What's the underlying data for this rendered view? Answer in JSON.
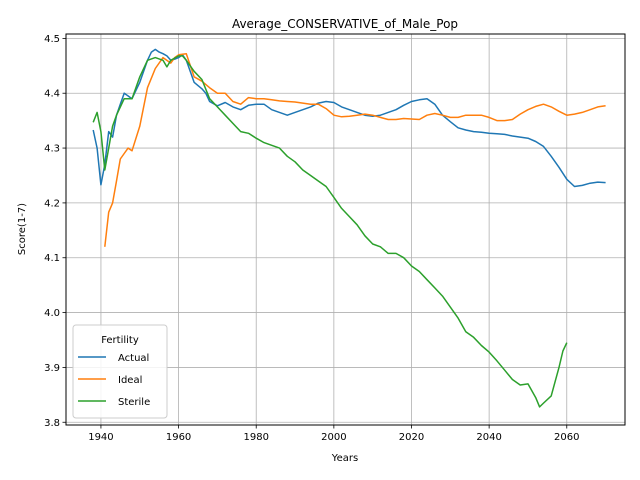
{
  "chart_data": {
    "type": "line",
    "title": "Average_CONSERVATIVE_of_Male_Pop",
    "xlabel": "Years",
    "ylabel": "Score(1-7)",
    "xlim": [
      1931,
      2075
    ],
    "ylim": [
      3.795,
      4.508
    ],
    "xticks": [
      1940,
      1960,
      1980,
      2000,
      2020,
      2040,
      2060
    ],
    "yticks": [
      3.8,
      3.9,
      4.0,
      4.1,
      4.2,
      4.3,
      4.4,
      4.5
    ],
    "grid": true,
    "legend": {
      "title": "Fertility",
      "placement": "lower-left"
    },
    "series": [
      {
        "name": "Actual",
        "color": "#1f77b4",
        "x": [
          1938,
          1939,
          1940,
          1941,
          1942,
          1943,
          1944,
          1945,
          1946,
          1948,
          1950,
          1952,
          1953,
          1954,
          1955,
          1956,
          1957,
          1958,
          1959,
          1960,
          1961,
          1962,
          1963,
          1964,
          1966,
          1967,
          1968,
          1970,
          1972,
          1974,
          1976,
          1978,
          1980,
          1982,
          1984,
          1986,
          1988,
          1990,
          1992,
          1994,
          1996,
          1998,
          2000,
          2002,
          2004,
          2006,
          2008,
          2010,
          2012,
          2014,
          2016,
          2018,
          2020,
          2022,
          2024,
          2026,
          2028,
          2030,
          2032,
          2034,
          2036,
          2038,
          2040,
          2042,
          2044,
          2046,
          2048,
          2050,
          2052,
          2054,
          2056,
          2058,
          2060,
          2062,
          2064,
          2066,
          2068,
          2070
        ],
        "y": [
          4.333,
          4.3,
          4.233,
          4.27,
          4.33,
          4.32,
          4.36,
          4.38,
          4.4,
          4.39,
          4.42,
          4.46,
          4.475,
          4.48,
          4.475,
          4.472,
          4.468,
          4.46,
          4.462,
          4.465,
          4.47,
          4.46,
          4.44,
          4.42,
          4.408,
          4.4,
          4.385,
          4.377,
          4.383,
          4.375,
          4.37,
          4.378,
          4.38,
          4.38,
          4.37,
          4.365,
          4.36,
          4.365,
          4.37,
          4.375,
          4.382,
          4.385,
          4.383,
          4.375,
          4.37,
          4.365,
          4.36,
          4.358,
          4.36,
          4.365,
          4.37,
          4.378,
          4.385,
          4.388,
          4.39,
          4.38,
          4.36,
          4.348,
          4.337,
          4.333,
          4.33,
          4.329,
          4.327,
          4.326,
          4.325,
          4.322,
          4.32,
          4.318,
          4.312,
          4.303,
          4.285,
          4.265,
          4.243,
          4.23,
          4.232,
          4.236,
          4.238,
          4.237
        ]
      },
      {
        "name": "Ideal",
        "color": "#ff7f0e",
        "x": [
          1941,
          1942,
          1943,
          1944,
          1945,
          1946,
          1947,
          1948,
          1950,
          1952,
          1954,
          1956,
          1958,
          1959,
          1960,
          1962,
          1964,
          1966,
          1968,
          1970,
          1972,
          1974,
          1976,
          1978,
          1980,
          1982,
          1984,
          1986,
          1988,
          1990,
          1992,
          1994,
          1996,
          1998,
          2000,
          2002,
          2004,
          2006,
          2008,
          2010,
          2012,
          2014,
          2016,
          2018,
          2020,
          2022,
          2024,
          2026,
          2028,
          2030,
          2032,
          2034,
          2036,
          2038,
          2040,
          2042,
          2044,
          2046,
          2048,
          2050,
          2052,
          2054,
          2056,
          2058,
          2060,
          2062,
          2064,
          2066,
          2068,
          2070
        ],
        "y": [
          4.12,
          4.183,
          4.2,
          4.24,
          4.28,
          4.29,
          4.3,
          4.295,
          4.34,
          4.41,
          4.445,
          4.465,
          4.455,
          4.465,
          4.47,
          4.472,
          4.43,
          4.422,
          4.41,
          4.4,
          4.4,
          4.385,
          4.38,
          4.392,
          4.39,
          4.39,
          4.388,
          4.386,
          4.385,
          4.384,
          4.382,
          4.38,
          4.38,
          4.372,
          4.36,
          4.357,
          4.358,
          4.36,
          4.362,
          4.36,
          4.356,
          4.352,
          4.352,
          4.354,
          4.353,
          4.352,
          4.36,
          4.363,
          4.36,
          4.356,
          4.356,
          4.36,
          4.36,
          4.36,
          4.356,
          4.35,
          4.35,
          4.352,
          4.362,
          4.37,
          4.376,
          4.38,
          4.375,
          4.367,
          4.36,
          4.362,
          4.365,
          4.37,
          4.375,
          4.377
        ]
      },
      {
        "name": "Sterile",
        "color": "#2ca02c",
        "x": [
          1938,
          1939,
          1940,
          1941,
          1942,
          1943,
          1944,
          1946,
          1948,
          1950,
          1952,
          1954,
          1956,
          1957,
          1958,
          1960,
          1961,
          1962,
          1964,
          1966,
          1968,
          1970,
          1972,
          1974,
          1976,
          1978,
          1980,
          1982,
          1984,
          1986,
          1988,
          1990,
          1992,
          1994,
          1996,
          1998,
          2000,
          2002,
          2004,
          2006,
          2008,
          2010,
          2012,
          2014,
          2016,
          2018,
          2020,
          2022,
          2024,
          2026,
          2028,
          2030,
          2032,
          2034,
          2036,
          2038,
          2040,
          2042,
          2044,
          2046,
          2048,
          2050,
          2052,
          2053,
          2054,
          2056,
          2058,
          2059,
          2060
        ],
        "y": [
          4.347,
          4.365,
          4.33,
          4.26,
          4.3,
          4.34,
          4.36,
          4.39,
          4.39,
          4.43,
          4.46,
          4.465,
          4.46,
          4.448,
          4.46,
          4.468,
          4.468,
          4.46,
          4.44,
          4.425,
          4.39,
          4.375,
          4.36,
          4.345,
          4.33,
          4.327,
          4.318,
          4.31,
          4.305,
          4.3,
          4.285,
          4.275,
          4.26,
          4.25,
          4.24,
          4.23,
          4.21,
          4.19,
          4.175,
          4.16,
          4.14,
          4.125,
          4.12,
          4.108,
          4.108,
          4.1,
          4.085,
          4.075,
          4.06,
          4.045,
          4.03,
          4.01,
          3.99,
          3.965,
          3.955,
          3.94,
          3.928,
          3.912,
          3.895,
          3.878,
          3.868,
          3.87,
          3.845,
          3.828,
          3.835,
          3.848,
          3.9,
          3.93,
          3.945
        ]
      }
    ]
  }
}
